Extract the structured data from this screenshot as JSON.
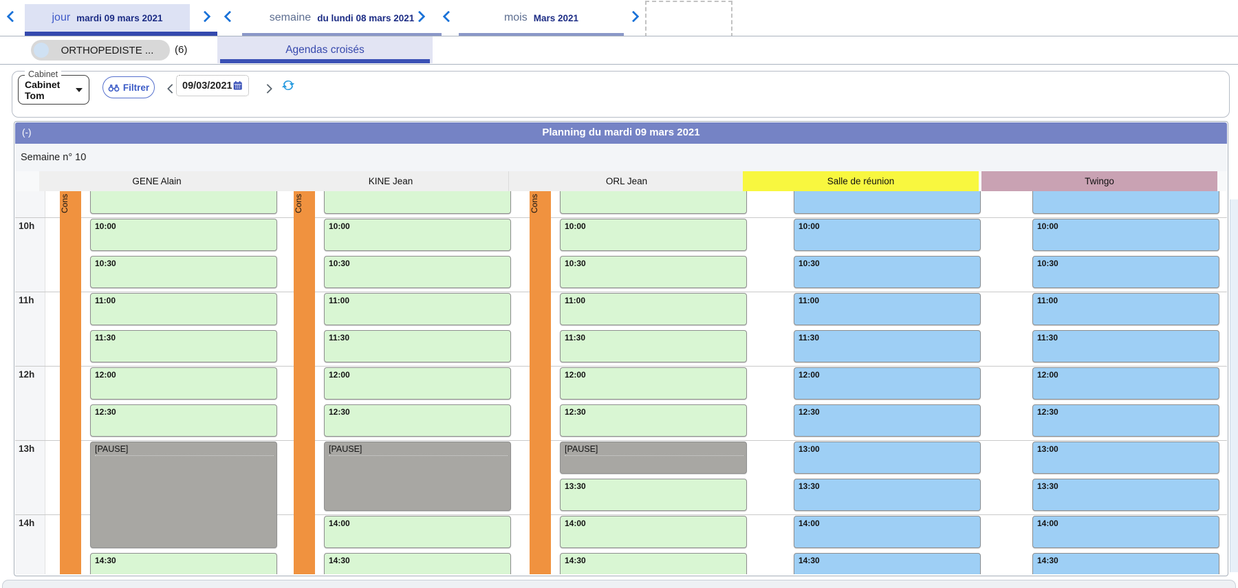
{
  "top_nav": {
    "day_tab": {
      "label": "jour",
      "date": "mardi 09 mars 2021"
    },
    "week_tab": {
      "label": "semaine",
      "date": "du lundi 08 mars 2021"
    },
    "month_tab": {
      "label": "mois",
      "date": "Mars 2021"
    }
  },
  "tabs": {
    "agenda_tab_label": "ORTHOPEDISTE ...",
    "agenda_tab_count": "(6)",
    "crossed_agendas_label": "Agendas croisés"
  },
  "toolbar": {
    "cabinet_legend": "Cabinet",
    "cabinet_value": "Cabinet Tom",
    "filter_label": "Filtrer",
    "date_value": "09/03/2021"
  },
  "planning": {
    "collapse_label": "(-)",
    "title": "Planning du mardi 09 mars 2021",
    "week_label": "Semaine n° 10",
    "cons_label": "Cons",
    "hours": [
      "10h",
      "11h",
      "12h",
      "13h",
      "14h"
    ],
    "columns": [
      {
        "name": "GENE Alain",
        "kind": "person",
        "slots": [
          {
            "label": "",
            "row": 0
          },
          {
            "label": "10:00",
            "row": 1
          },
          {
            "label": "10:30",
            "row": 2
          },
          {
            "label": "11:00",
            "row": 3
          },
          {
            "label": "11:30",
            "row": 4
          },
          {
            "label": "12:00",
            "row": 5
          },
          {
            "label": "12:30",
            "row": 6
          },
          {
            "label": "[PAUSE]",
            "row": 7,
            "span": 3,
            "type": "pause"
          },
          {
            "label": "14:30",
            "row": 10
          }
        ]
      },
      {
        "name": "KINE Jean",
        "kind": "person",
        "slots": [
          {
            "label": "",
            "row": 0
          },
          {
            "label": "10:00",
            "row": 1
          },
          {
            "label": "10:30",
            "row": 2
          },
          {
            "label": "11:00",
            "row": 3
          },
          {
            "label": "11:30",
            "row": 4
          },
          {
            "label": "12:00",
            "row": 5
          },
          {
            "label": "12:30",
            "row": 6
          },
          {
            "label": "[PAUSE]",
            "row": 7,
            "span": 2,
            "type": "pause"
          },
          {
            "label": "14:00",
            "row": 9
          },
          {
            "label": "14:30",
            "row": 10
          }
        ]
      },
      {
        "name": "ORL Jean",
        "kind": "person",
        "slots": [
          {
            "label": "",
            "row": 0
          },
          {
            "label": "10:00",
            "row": 1
          },
          {
            "label": "10:30",
            "row": 2
          },
          {
            "label": "11:00",
            "row": 3
          },
          {
            "label": "11:30",
            "row": 4
          },
          {
            "label": "12:00",
            "row": 5
          },
          {
            "label": "12:30",
            "row": 6
          },
          {
            "label": "[PAUSE]",
            "row": 7,
            "span": 1,
            "type": "pause"
          },
          {
            "label": "13:30",
            "row": 8
          },
          {
            "label": "14:00",
            "row": 9
          },
          {
            "label": "14:30",
            "row": 10
          }
        ]
      },
      {
        "name": "Salle de réunion",
        "kind": "room",
        "slots": [
          {
            "label": "",
            "row": 0
          },
          {
            "label": "10:00",
            "row": 1
          },
          {
            "label": "10:30",
            "row": 2
          },
          {
            "label": "11:00",
            "row": 3
          },
          {
            "label": "11:30",
            "row": 4
          },
          {
            "label": "12:00",
            "row": 5
          },
          {
            "label": "12:30",
            "row": 6
          },
          {
            "label": "13:00",
            "row": 7
          },
          {
            "label": "13:30",
            "row": 8
          },
          {
            "label": "14:00",
            "row": 9
          },
          {
            "label": "14:30",
            "row": 10
          }
        ]
      },
      {
        "name": "Twingo",
        "kind": "vehicle",
        "slots": [
          {
            "label": "",
            "row": 0
          },
          {
            "label": "10:00",
            "row": 1
          },
          {
            "label": "10:30",
            "row": 2
          },
          {
            "label": "11:00",
            "row": 3
          },
          {
            "label": "11:30",
            "row": 4
          },
          {
            "label": "12:00",
            "row": 5
          },
          {
            "label": "12:30",
            "row": 6
          },
          {
            "label": "13:00",
            "row": 7
          },
          {
            "label": "13:30",
            "row": 8
          },
          {
            "label": "14:00",
            "row": 9
          },
          {
            "label": "14:30",
            "row": 10
          }
        ]
      }
    ]
  },
  "colors": {
    "purple_header": "#7583c5",
    "green_slot": "#d9f6d3",
    "blue_slot": "#9ecff5",
    "orange_strip": "#f0923f",
    "yellow_header": "#f8f73f",
    "mauve_header": "#c9a2b3",
    "gray_header": "#efefef",
    "pause_block": "#a8a7a3",
    "accent_blue": "#3b52b8",
    "link_blue": "#1a72d8"
  }
}
